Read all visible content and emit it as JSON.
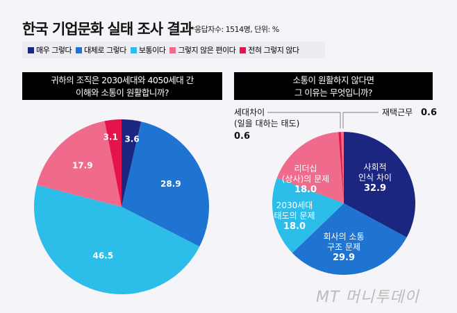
{
  "title": "한국 기업문화 실태 조사 결과",
  "note": "*응답자수: 1514명, 단위: %",
  "colors": {
    "navy": "#1b2680",
    "blue": "#1f74d2",
    "cyan": "#2cbde8",
    "pink": "#f06a8c",
    "red": "#e5134b"
  },
  "legend": [
    {
      "label": "매우 그렇다",
      "color": "#1b2680"
    },
    {
      "label": "대체로 그렇다",
      "color": "#1f74d2"
    },
    {
      "label": "보통이다",
      "color": "#2cbde8"
    },
    {
      "label": "그렇지 않은 편이다",
      "color": "#f06a8c"
    },
    {
      "label": "전혀 그렇지 않다",
      "color": "#e5134b"
    }
  ],
  "watermark": "MT 머니투데이",
  "chart_data": [
    {
      "type": "pie",
      "title": "귀하의 조직은 2030세대와 4050세대 간 이해와 소통이 원활합니까?",
      "title_lines": [
        "귀하의 조직은 2030세대와 4050세대 간",
        "이해와 소통이 원활합니까?"
      ],
      "categories": [
        "매우 그렇다",
        "대체로 그렇다",
        "보통이다",
        "그렇지 않은 편이다",
        "전혀 그렇지 않다"
      ],
      "values": [
        3.6,
        28.9,
        46.5,
        17.9,
        3.1
      ],
      "colors": [
        "#1b2680",
        "#1f74d2",
        "#2cbde8",
        "#f06a8c",
        "#e5134b"
      ]
    },
    {
      "type": "pie",
      "title": "소통이 원활하지 않다면 그 이유는 무엇입니까?",
      "title_lines": [
        "소통이 원활하지 않다면",
        "그 이유는 무엇입니까?"
      ],
      "categories": [
        "사회적 인식 차이",
        "회사의 소통 구조 문제",
        "2030세대 태도의 문제",
        "리더십(상사)의 문제",
        "세대차이(일을 대하는 태도)",
        "재택근무"
      ],
      "label_lines": [
        [
          "사회적",
          "인식 차이"
        ],
        [
          "회사의 소통",
          "구조 문제"
        ],
        [
          "2030세대",
          "태도의 문제"
        ],
        [
          "리더십",
          "(상사)의 문제"
        ],
        [
          "세대차이",
          "(일을 대하는 태도)"
        ],
        [
          "재택근무"
        ]
      ],
      "values": [
        32.9,
        29.9,
        18.0,
        18.0,
        0.6,
        0.6
      ],
      "value_labels": [
        "32.9",
        "29.9",
        "18.0",
        "18.0",
        "0.6",
        "0.6"
      ],
      "colors": [
        "#1b2680",
        "#1f74d2",
        "#2cbde8",
        "#f06a8c",
        "#e5134b",
        "#f06a8c"
      ]
    }
  ]
}
